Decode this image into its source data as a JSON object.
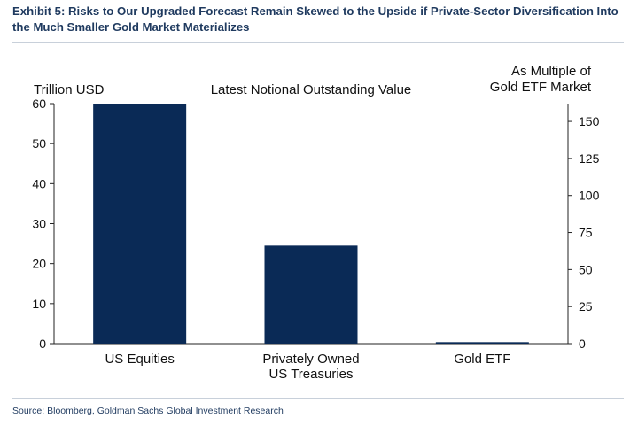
{
  "exhibit_title": "Exhibit 5: Risks to Our Upgraded Forecast Remain Skewed to the Upside if Private-Sector Diversification Into the Much Smaller Gold Market Materializes",
  "source": "Source: Bloomberg, Goldman Sachs Global Investment Research",
  "colors": {
    "bar": "#0a2a56",
    "axis": "#222222",
    "title": "#1f3a5f"
  },
  "chart_data": {
    "type": "bar",
    "title": "Latest Notional Outstanding Value",
    "categories": [
      [
        "US Equities"
      ],
      [
        "Privately Owned",
        "US Treasuries"
      ],
      [
        "Gold ETF"
      ]
    ],
    "values": [
      60,
      24.5,
      0.37
    ],
    "ylabel": "Trillion USD",
    "ylim": [
      0,
      60
    ],
    "yticks": [
      0,
      10,
      20,
      30,
      40,
      50,
      60
    ],
    "y2label": [
      "As Multiple of",
      "Gold ETF Market"
    ],
    "y2lim": [
      0,
      162
    ],
    "y2ticks": [
      0,
      25,
      50,
      75,
      100,
      125,
      150
    ],
    "grid": false,
    "legend": "none"
  }
}
